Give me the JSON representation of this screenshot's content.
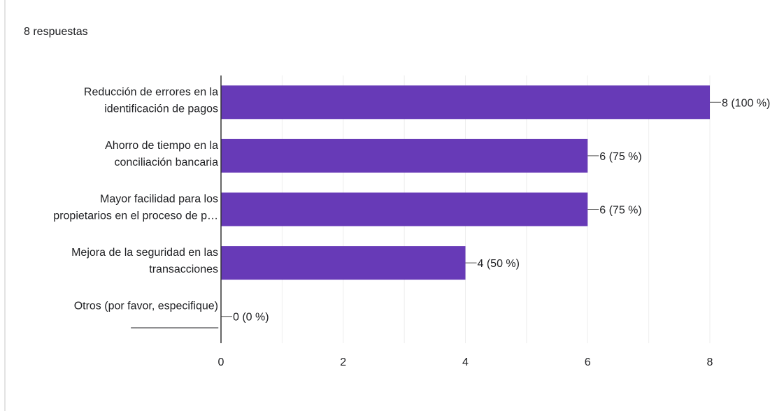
{
  "response_count_label": "8 respuestas",
  "colors": {
    "bar": "#673ab7",
    "grid": "#eeeeee",
    "axis": "#333333",
    "text": "#202124"
  },
  "chart_data": {
    "type": "bar",
    "orientation": "horizontal",
    "categories": [
      [
        "Reducción de errores en la",
        "identificación de pagos"
      ],
      [
        "Ahorro de tiempo en la",
        "conciliación bancaria"
      ],
      [
        "Mayor facilidad para los",
        "propietarios en el proceso de p…"
      ],
      [
        "Mejora de la seguridad en las",
        "transacciones"
      ],
      [
        "Otros (por favor, especifique)",
        "______________"
      ]
    ],
    "values": [
      8,
      6,
      6,
      4,
      0
    ],
    "data_labels": [
      "8 (100 %)",
      "6 (75 %)",
      "6 (75 %)",
      "4 (50 %)",
      "0 (0 %)"
    ],
    "xlim": [
      0,
      8
    ],
    "xticks": [
      0,
      2,
      4,
      6,
      8
    ],
    "minor_grid": true,
    "grid": true
  }
}
